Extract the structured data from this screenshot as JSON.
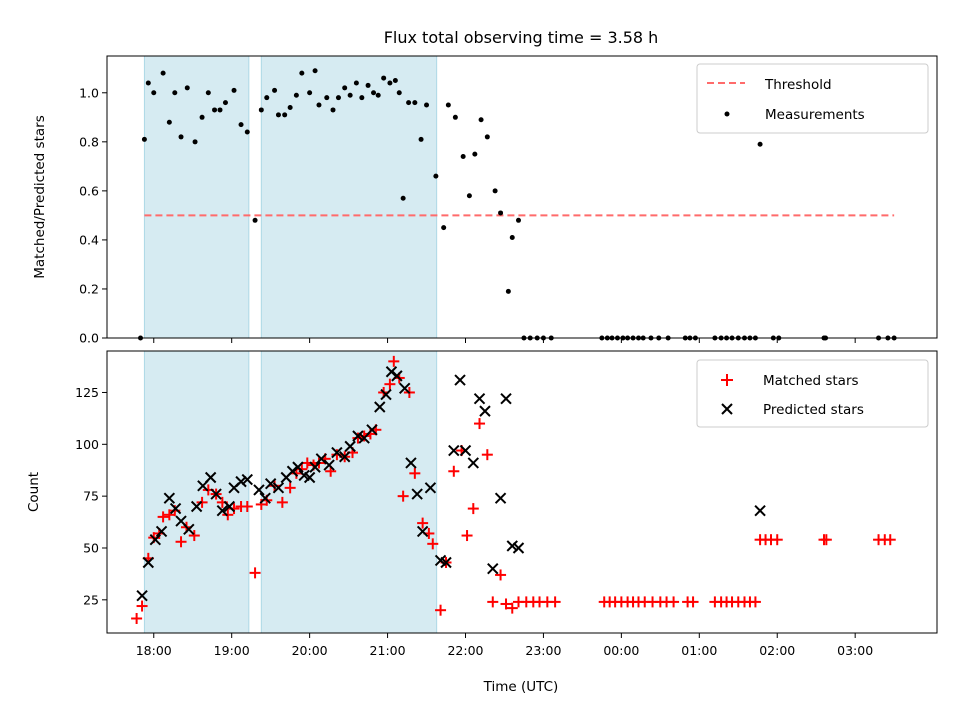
{
  "chart_data": [
    {
      "type": "scatter",
      "title": "Flux total observing time = 3.58 h",
      "ylabel": "Matched/Predicted stars",
      "xlabel": "",
      "x_unit": "hours since 17:00 UTC (xticks labeled as clock time)",
      "xlim": [
        17.4,
        28.05
      ],
      "ylim": [
        0,
        1.15
      ],
      "yticks": [
        0.0,
        0.2,
        0.4,
        0.6,
        0.8,
        1.0
      ],
      "ytick_labels": [
        "0.0",
        "0.2",
        "0.4",
        "0.6",
        "0.8",
        "1.0"
      ],
      "xticks": [
        18,
        19,
        20,
        21,
        22,
        23,
        24,
        25,
        26,
        27
      ],
      "legend_position": "upper right",
      "shaded_intervals": [
        [
          17.88,
          19.22
        ],
        [
          19.38,
          21.63
        ]
      ],
      "threshold": {
        "name": "Threshold",
        "value": 0.5,
        "x_range": [
          17.88,
          27.5
        ],
        "color": "#ff6666"
      },
      "series": [
        {
          "name": "Measurements",
          "color": "#000000",
          "points": [
            [
              17.83,
              0.0
            ],
            [
              17.88,
              0.81
            ],
            [
              17.93,
              1.04
            ],
            [
              18.0,
              1.0
            ],
            [
              18.12,
              1.08
            ],
            [
              18.2,
              0.88
            ],
            [
              18.27,
              1.0
            ],
            [
              18.35,
              0.82
            ],
            [
              18.43,
              1.02
            ],
            [
              18.53,
              0.8
            ],
            [
              18.62,
              0.9
            ],
            [
              18.7,
              1.0
            ],
            [
              18.78,
              0.93
            ],
            [
              18.85,
              0.93
            ],
            [
              18.92,
              0.96
            ],
            [
              19.03,
              1.01
            ],
            [
              19.12,
              0.87
            ],
            [
              19.2,
              0.84
            ],
            [
              19.3,
              0.48
            ],
            [
              19.38,
              0.93
            ],
            [
              19.45,
              0.98
            ],
            [
              19.55,
              1.01
            ],
            [
              19.6,
              0.91
            ],
            [
              19.68,
              0.91
            ],
            [
              19.75,
              0.94
            ],
            [
              19.83,
              0.99
            ],
            [
              19.9,
              1.08
            ],
            [
              20.0,
              1.0
            ],
            [
              20.07,
              1.09
            ],
            [
              20.12,
              0.95
            ],
            [
              20.22,
              0.98
            ],
            [
              20.3,
              0.93
            ],
            [
              20.37,
              0.98
            ],
            [
              20.45,
              1.02
            ],
            [
              20.52,
              0.99
            ],
            [
              20.6,
              1.04
            ],
            [
              20.67,
              0.98
            ],
            [
              20.75,
              1.03
            ],
            [
              20.82,
              1.0
            ],
            [
              20.88,
              0.99
            ],
            [
              20.95,
              1.06
            ],
            [
              21.03,
              1.04
            ],
            [
              21.1,
              1.05
            ],
            [
              21.15,
              1.0
            ],
            [
              21.2,
              0.57
            ],
            [
              21.27,
              0.96
            ],
            [
              21.35,
              0.96
            ],
            [
              21.43,
              0.81
            ],
            [
              21.5,
              0.95
            ],
            [
              21.62,
              0.66
            ],
            [
              21.72,
              0.45
            ],
            [
              21.78,
              0.95
            ],
            [
              21.87,
              0.9
            ],
            [
              21.97,
              0.74
            ],
            [
              22.05,
              0.58
            ],
            [
              22.12,
              0.75
            ],
            [
              22.2,
              0.89
            ],
            [
              22.28,
              0.82
            ],
            [
              22.38,
              0.6
            ],
            [
              22.45,
              0.51
            ],
            [
              22.55,
              0.19
            ],
            [
              22.6,
              0.41
            ],
            [
              22.68,
              0.48
            ],
            [
              22.75,
              0.0
            ],
            [
              22.83,
              0.0
            ],
            [
              22.92,
              0.0
            ],
            [
              23.0,
              0.0
            ],
            [
              23.1,
              0.0
            ],
            [
              23.75,
              0.0
            ],
            [
              23.82,
              0.0
            ],
            [
              23.88,
              0.0
            ],
            [
              23.95,
              0.0
            ],
            [
              24.02,
              0.0
            ],
            [
              24.08,
              0.0
            ],
            [
              24.15,
              0.0
            ],
            [
              24.22,
              0.0
            ],
            [
              24.28,
              0.0
            ],
            [
              24.38,
              0.0
            ],
            [
              24.48,
              0.0
            ],
            [
              24.6,
              0.0
            ],
            [
              24.82,
              0.0
            ],
            [
              24.88,
              0.0
            ],
            [
              24.95,
              0.0
            ],
            [
              25.2,
              0.0
            ],
            [
              25.28,
              0.0
            ],
            [
              25.35,
              0.0
            ],
            [
              25.42,
              0.0
            ],
            [
              25.5,
              0.0
            ],
            [
              25.58,
              0.0
            ],
            [
              25.65,
              0.0
            ],
            [
              25.72,
              0.0
            ],
            [
              25.78,
              0.79
            ],
            [
              25.95,
              0.0
            ],
            [
              26.02,
              0.0
            ],
            [
              26.6,
              0.0
            ],
            [
              26.62,
              0.0
            ],
            [
              27.3,
              0.0
            ],
            [
              27.42,
              0.0
            ],
            [
              27.5,
              0.0
            ]
          ]
        }
      ]
    },
    {
      "type": "scatter",
      "title": "",
      "ylabel": "Count",
      "xlabel": "Time (UTC)",
      "x_unit": "hours since 17:00 UTC (xticks labeled as clock time)",
      "xlim": [
        17.4,
        28.05
      ],
      "ylim": [
        9,
        145
      ],
      "yticks": [
        25,
        50,
        75,
        100,
        125
      ],
      "ytick_labels": [
        "25",
        "50",
        "75",
        "100",
        "125"
      ],
      "xticks": [
        18,
        19,
        20,
        21,
        22,
        23,
        24,
        25,
        26,
        27
      ],
      "xtick_labels": [
        "18:00",
        "19:00",
        "20:00",
        "21:00",
        "22:00",
        "23:00",
        "00:00",
        "01:00",
        "02:00",
        "03:00"
      ],
      "legend_position": "upper right",
      "shaded_intervals": [
        [
          17.88,
          19.22
        ],
        [
          19.38,
          21.63
        ]
      ],
      "series": [
        {
          "name": "Matched stars",
          "marker": "plus",
          "color": "#ff0000",
          "points": [
            [
              17.78,
              16
            ],
            [
              17.85,
              22
            ],
            [
              17.93,
              45
            ],
            [
              18.0,
              55
            ],
            [
              18.07,
              57
            ],
            [
              18.12,
              65
            ],
            [
              18.2,
              66
            ],
            [
              18.27,
              68
            ],
            [
              18.35,
              53
            ],
            [
              18.42,
              60
            ],
            [
              18.52,
              56
            ],
            [
              18.62,
              72
            ],
            [
              18.7,
              78
            ],
            [
              18.8,
              76
            ],
            [
              18.88,
              72
            ],
            [
              18.95,
              66
            ],
            [
              19.03,
              69
            ],
            [
              19.12,
              70
            ],
            [
              19.2,
              70
            ],
            [
              19.3,
              38
            ],
            [
              19.38,
              71
            ],
            [
              19.45,
              73
            ],
            [
              19.55,
              80
            ],
            [
              19.65,
              72
            ],
            [
              19.75,
              79
            ],
            [
              19.83,
              86
            ],
            [
              19.9,
              88
            ],
            [
              19.97,
              91
            ],
            [
              20.05,
              90
            ],
            [
              20.12,
              91
            ],
            [
              20.2,
              93
            ],
            [
              20.27,
              87
            ],
            [
              20.35,
              95
            ],
            [
              20.45,
              94
            ],
            [
              20.55,
              96
            ],
            [
              20.62,
              103
            ],
            [
              20.7,
              104
            ],
            [
              20.78,
              105
            ],
            [
              20.85,
              107
            ],
            [
              20.95,
              125
            ],
            [
              21.03,
              129
            ],
            [
              21.08,
              140
            ],
            [
              21.15,
              132
            ],
            [
              21.2,
              75
            ],
            [
              21.28,
              125
            ],
            [
              21.35,
              86
            ],
            [
              21.45,
              62
            ],
            [
              21.53,
              57
            ],
            [
              21.58,
              52
            ],
            [
              21.68,
              20
            ],
            [
              21.75,
              43
            ],
            [
              21.85,
              87
            ],
            [
              21.95,
              97
            ],
            [
              22.02,
              56
            ],
            [
              22.1,
              69
            ],
            [
              22.18,
              110
            ],
            [
              22.28,
              95
            ],
            [
              22.35,
              24
            ],
            [
              22.45,
              37
            ],
            [
              22.52,
              23
            ],
            [
              22.6,
              21
            ],
            [
              22.68,
              24
            ],
            [
              22.78,
              24
            ],
            [
              22.87,
              24
            ],
            [
              22.95,
              24
            ],
            [
              23.05,
              24
            ],
            [
              23.15,
              24
            ],
            [
              23.78,
              24
            ],
            [
              23.85,
              24
            ],
            [
              23.92,
              24
            ],
            [
              24.0,
              24
            ],
            [
              24.08,
              24
            ],
            [
              24.15,
              24
            ],
            [
              24.22,
              24
            ],
            [
              24.3,
              24
            ],
            [
              24.4,
              24
            ],
            [
              24.5,
              24
            ],
            [
              24.58,
              24
            ],
            [
              24.67,
              24
            ],
            [
              24.85,
              24
            ],
            [
              24.92,
              24
            ],
            [
              25.2,
              24
            ],
            [
              25.28,
              24
            ],
            [
              25.35,
              24
            ],
            [
              25.42,
              24
            ],
            [
              25.5,
              24
            ],
            [
              25.58,
              24
            ],
            [
              25.65,
              24
            ],
            [
              25.72,
              24
            ],
            [
              25.78,
              54
            ],
            [
              25.85,
              54
            ],
            [
              25.92,
              54
            ],
            [
              26.0,
              54
            ],
            [
              26.6,
              54
            ],
            [
              26.63,
              54
            ],
            [
              27.3,
              54
            ],
            [
              27.38,
              54
            ],
            [
              27.45,
              54
            ]
          ]
        },
        {
          "name": "Predicted stars",
          "marker": "x",
          "color": "#000000",
          "points": [
            [
              17.85,
              27
            ],
            [
              17.93,
              43
            ],
            [
              18.02,
              54
            ],
            [
              18.1,
              58
            ],
            [
              18.2,
              74
            ],
            [
              18.28,
              69
            ],
            [
              18.35,
              63
            ],
            [
              18.45,
              59
            ],
            [
              18.55,
              70
            ],
            [
              18.63,
              80
            ],
            [
              18.73,
              84
            ],
            [
              18.8,
              76
            ],
            [
              18.88,
              68
            ],
            [
              18.97,
              70
            ],
            [
              19.03,
              79
            ],
            [
              19.12,
              82
            ],
            [
              19.2,
              83
            ],
            [
              19.35,
              78
            ],
            [
              19.43,
              74
            ],
            [
              19.5,
              81
            ],
            [
              19.6,
              79
            ],
            [
              19.7,
              84
            ],
            [
              19.78,
              87
            ],
            [
              19.85,
              89
            ],
            [
              19.93,
              85
            ],
            [
              20.0,
              84
            ],
            [
              20.07,
              89
            ],
            [
              20.15,
              93
            ],
            [
              20.25,
              90
            ],
            [
              20.35,
              96
            ],
            [
              20.45,
              94
            ],
            [
              20.52,
              99
            ],
            [
              20.62,
              104
            ],
            [
              20.7,
              103
            ],
            [
              20.8,
              107
            ],
            [
              20.9,
              118
            ],
            [
              20.98,
              124
            ],
            [
              21.05,
              135
            ],
            [
              21.12,
              133
            ],
            [
              21.22,
              127
            ],
            [
              21.3,
              91
            ],
            [
              21.38,
              76
            ],
            [
              21.45,
              58
            ],
            [
              21.55,
              79
            ],
            [
              21.68,
              44
            ],
            [
              21.75,
              43
            ],
            [
              21.85,
              97
            ],
            [
              21.93,
              131
            ],
            [
              22.0,
              97
            ],
            [
              22.1,
              91
            ],
            [
              22.18,
              122
            ],
            [
              22.25,
              116
            ],
            [
              22.35,
              40
            ],
            [
              22.45,
              74
            ],
            [
              22.52,
              122
            ],
            [
              22.6,
              51
            ],
            [
              22.68,
              50
            ],
            [
              25.78,
              68
            ]
          ]
        }
      ]
    }
  ]
}
